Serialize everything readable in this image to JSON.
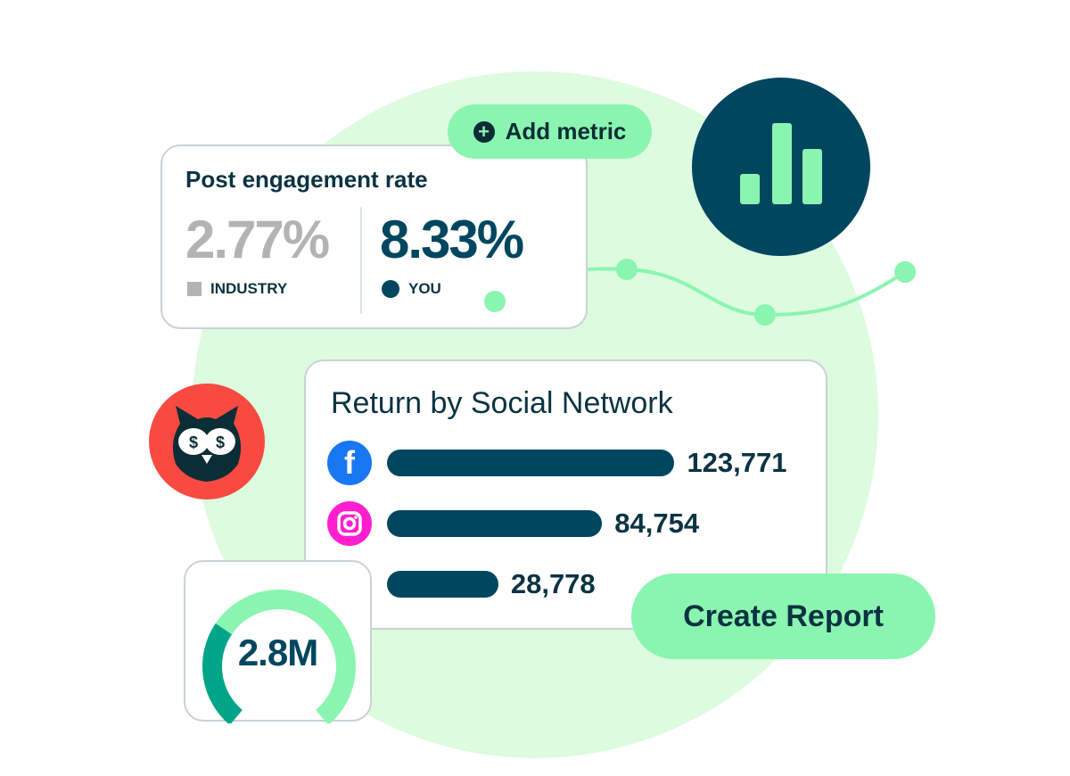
{
  "engagement": {
    "title": "Post engagement rate",
    "industry_value": "2.77%",
    "industry_label": "INDUSTRY",
    "you_value": "8.33%",
    "you_label": "YOU"
  },
  "add_metric": {
    "label": "Add metric",
    "icon": "plus-circle-icon"
  },
  "social": {
    "title": "Return by Social Network",
    "rows": [
      {
        "network": "facebook",
        "value": 123771,
        "label": "123,771",
        "color": "#1877f2"
      },
      {
        "network": "instagram",
        "value": 84754,
        "label": "84,754",
        "color": "#ff1fce"
      },
      {
        "network": "",
        "value": 28778,
        "label": "28,778"
      }
    ]
  },
  "gauge": {
    "value": "2.8M",
    "fill_fraction": 0.3
  },
  "create_report": {
    "label": "Create Report"
  },
  "colors": {
    "accent_green": "#8af5b0",
    "navy": "#00465f",
    "owl_red": "#f84a41",
    "gauge_dark": "#00a587",
    "background_green": "#ddfbdf"
  }
}
